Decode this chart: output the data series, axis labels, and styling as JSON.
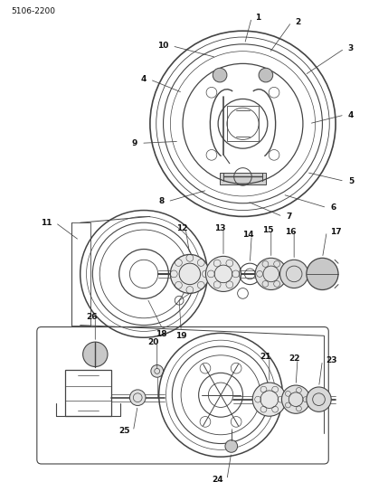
{
  "title": "5106-2200",
  "bg_color": "#ffffff",
  "line_color": "#444444",
  "text_color": "#111111",
  "fig_width": 4.08,
  "fig_height": 5.33,
  "dpi": 100,
  "label_fontsize": 6.5,
  "title_fontsize": 6.5
}
